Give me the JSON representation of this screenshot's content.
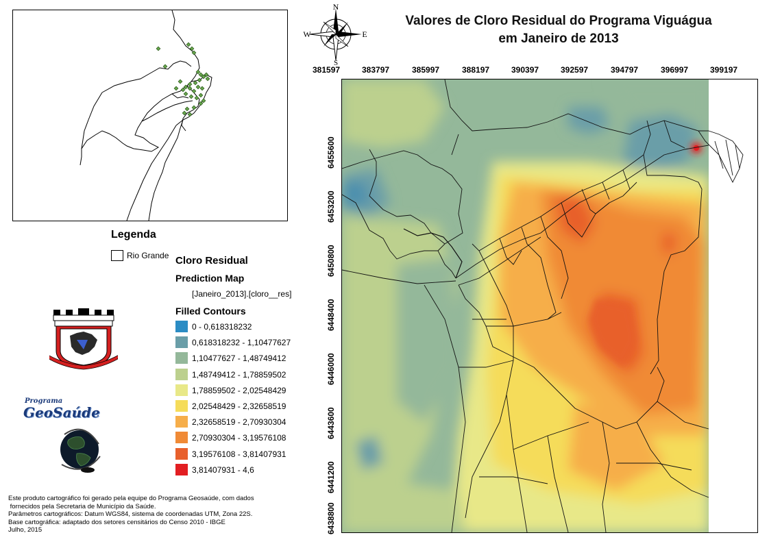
{
  "title": {
    "line1": "Valores de Cloro Residual do Programa Viguágua",
    "line2": "em Janeiro de 2013"
  },
  "compass": {
    "n": "N",
    "s": "S",
    "e": "E",
    "w": "W"
  },
  "x_ticks": [
    "381597",
    "383797",
    "385997",
    "388197",
    "390397",
    "392597",
    "394797",
    "396997",
    "399197"
  ],
  "y_ticks": [
    "6455600",
    "6453200",
    "6450800",
    "6448400",
    "6446000",
    "6443600",
    "6441200",
    "6438800"
  ],
  "legend": {
    "title": "Legenda",
    "rio_grande": "Rio Grande",
    "layer_title": "Cloro Residual",
    "prediction": "Prediction Map",
    "field": "[Janeiro_2013].[cloro__res]",
    "filled": "Filled Contours",
    "classes": [
      {
        "label": "0 - 0,618318232",
        "color": "#2b8cc4"
      },
      {
        "label": "0,618318232 - 1,10477627",
        "color": "#6a9ea8"
      },
      {
        "label": "1,10477627 - 1,48749412",
        "color": "#94b89a"
      },
      {
        "label": "1,48749412 - 1,78859502",
        "color": "#bcd08e"
      },
      {
        "label": "1,78859502 - 2,02548429",
        "color": "#e8e888"
      },
      {
        "label": "2,02548429 - 2,32658519",
        "color": "#f5dc5a"
      },
      {
        "label": "2,32658519 - 2,70930304",
        "color": "#f6ae4a"
      },
      {
        "label": "2,70930304 - 3,19576108",
        "color": "#f08a36"
      },
      {
        "label": "3,19576108 - 3,81407931",
        "color": "#e8602c"
      },
      {
        "label": "3,81407931 - 4,6",
        "color": "#e21e22"
      }
    ]
  },
  "logos": {
    "geo_program": "Programa",
    "geo_name": "GeoSaúde"
  },
  "credits": [
    "Este produto cartográfico foi gerado pela equipe do Programa Geosaúde, com dados",
    " fornecidos pela Secretaria de Município da Saúde.",
    "Parâmetros cartográficos: Datum WGS84, sistema de coordenadas UTM, Zona 22S.",
    "Base cartográfica: adaptado dos setores censitários do Censo 2010 - IBGE",
    "Julho, 2015"
  ]
}
